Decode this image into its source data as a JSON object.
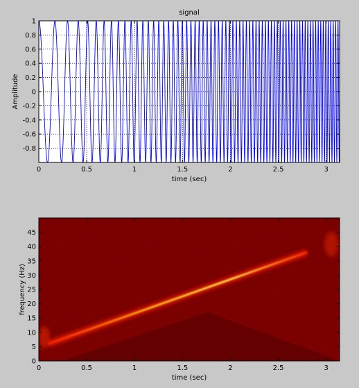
{
  "figure": {
    "background": "#c8c8c8"
  },
  "chart_data": [
    {
      "type": "line",
      "title": "signal",
      "xlabel": "time (sec)",
      "ylabel": "Amplitude",
      "xlim": [
        0,
        3.14
      ],
      "ylim": [
        -1,
        1
      ],
      "x_ticks": [
        "0",
        "0.5",
        "1",
        "1.5",
        "2",
        "2.5",
        "3"
      ],
      "x_tick_values": [
        0,
        0.5,
        1,
        1.5,
        2,
        2.5,
        3
      ],
      "y_ticks": [
        "-0.8",
        "-0.6",
        "-0.4",
        "-0.2",
        "0",
        "0.2",
        "0.4",
        "0.6",
        "0.8",
        "1"
      ],
      "y_tick_values": [
        -0.8,
        -0.6,
        -0.4,
        -0.2,
        0,
        0.2,
        0.4,
        0.6,
        0.8,
        1
      ],
      "grid": true,
      "line_color": "#0000ff",
      "series": [
        {
          "description": "linear chirp, instantaneous frequency rising from about 5 Hz to about 40 Hz",
          "f0_hz": 5,
          "f1_hz": 40,
          "amplitude": 1
        }
      ]
    },
    {
      "type": "heatmap",
      "xlabel": "time (sec)",
      "ylabel": "frequency (Hz)",
      "xlim": [
        0,
        3.14
      ],
      "ylim": [
        0,
        50
      ],
      "x_ticks": [
        "0",
        "0.5",
        "1",
        "1.5",
        "2",
        "2.5",
        "3"
      ],
      "x_tick_values": [
        0,
        0.5,
        1,
        1.5,
        2,
        2.5,
        3
      ],
      "y_ticks": [
        "0",
        "5",
        "10",
        "15",
        "20",
        "25",
        "30",
        "35",
        "40",
        "45"
      ],
      "y_tick_values": [
        0,
        5,
        10,
        15,
        20,
        25,
        30,
        35,
        40,
        45
      ],
      "colormap": "hot",
      "background_color": "#7a0000",
      "ridge": {
        "x": [
          0.1,
          2.8
        ],
        "y": [
          6,
          38
        ],
        "color": "#ffff40"
      }
    }
  ]
}
